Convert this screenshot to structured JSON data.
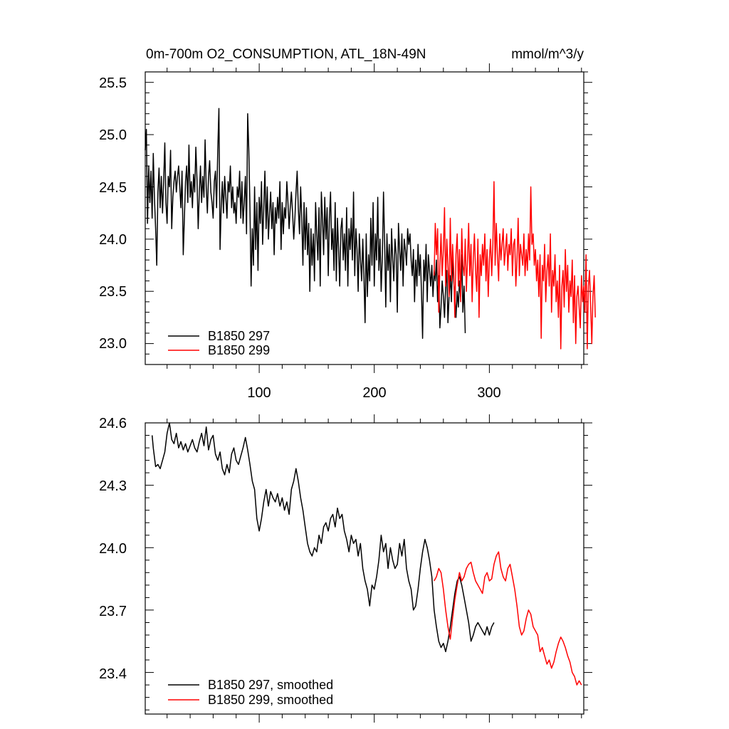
{
  "chart_data": [
    {
      "type": "line",
      "title": "0m-700m O2_CONSUMPTION, ATL_18N-49N",
      "units": "mmol/m^3/y",
      "xlim": [
        1,
        382
      ],
      "ylim": [
        22.8,
        25.6
      ],
      "xticks": [
        100,
        200,
        300
      ],
      "xtick_labels": [
        "100",
        "200",
        "300"
      ],
      "yticks": [
        23.0,
        23.5,
        24.0,
        24.5,
        25.0,
        25.5
      ],
      "ytick_labels": [
        "23.0",
        "23.5",
        "24.0",
        "24.5",
        "25.0",
        "25.5"
      ],
      "legend_position": "bottom-left",
      "series": [
        {
          "name": "B1850 297",
          "color": "#000000",
          "x_start": 1,
          "values": [
            24.85,
            25.05,
            24.15,
            24.7,
            24.35,
            24.65,
            24.2,
            24.82,
            24.4,
            24.1,
            23.75,
            24.45,
            24.68,
            24.3,
            24.6,
            24.25,
            24.55,
            24.92,
            24.35,
            24.15,
            24.6,
            24.5,
            24.85,
            24.1,
            24.4,
            24.55,
            24.65,
            24.45,
            24.6,
            24.7,
            24.5,
            24.3,
            24.65,
            23.85,
            24.2,
            24.55,
            24.7,
            24.35,
            24.9,
            24.4,
            24.55,
            24.3,
            24.62,
            24.45,
            24.88,
            24.55,
            24.1,
            24.45,
            24.7,
            24.35,
            24.6,
            24.4,
            24.95,
            24.5,
            24.25,
            24.6,
            24.75,
            24.45,
            24.35,
            24.2,
            24.55,
            24.65,
            24.3,
            24.85,
            25.25,
            23.9,
            24.3,
            24.55,
            24.25,
            24.6,
            24.4,
            24.2,
            24.55,
            24.45,
            24.7,
            24.3,
            24.5,
            24.25,
            24.35,
            24.15,
            24.5,
            24.4,
            24.65,
            24.2,
            24.55,
            24.15,
            24.35,
            24.6,
            24.05,
            25.2,
            24.85,
            24.3,
            23.55,
            24.1,
            23.75,
            24.5,
            23.9,
            24.35,
            23.7,
            24.4,
            24.15,
            24.55,
            23.95,
            24.3,
            24.65,
            24.1,
            24.5,
            24.0,
            24.25,
            24.45,
            24.1,
            24.35,
            23.85,
            24.3,
            24.15,
            24.4,
            24.2,
            24.55,
            23.9,
            24.35,
            24.05,
            24.3,
            24.2,
            24.55,
            24.35,
            24.1,
            24.3,
            24.45,
            24.25,
            24.0,
            24.2,
            24.45,
            24.65,
            24.3,
            24.05,
            24.5,
            24.2,
            23.75,
            24.35,
            23.9,
            24.3,
            23.85,
            24.15,
            23.5,
            24.1,
            23.75,
            24.05,
            23.6,
            24.35,
            24.05,
            23.8,
            24.3,
            23.55,
            24.45,
            24.2,
            23.85,
            24.4,
            24.0,
            24.3,
            23.65,
            24.2,
            24.45,
            23.9,
            24.1,
            23.7,
            24.35,
            23.6,
            24.2,
            23.9,
            23.55,
            24.1,
            24.2,
            23.8,
            24.05,
            23.7,
            24.3,
            23.55,
            24.1,
            23.9,
            24.2,
            23.8,
            24.45,
            23.65,
            24.1,
            23.9,
            23.5,
            24.05,
            23.8,
            23.6,
            24.0,
            23.65,
            23.2,
            24.05,
            23.45,
            23.85,
            23.6,
            24.2,
            23.75,
            24.35,
            23.55,
            24.05,
            23.8,
            24.4,
            23.7,
            24.0,
            23.5,
            23.85,
            24.45,
            23.95,
            23.35,
            24.05,
            23.7,
            23.95,
            23.4,
            24.1,
            23.8,
            23.6,
            24.0,
            23.85,
            23.3,
            24.15,
            23.9,
            23.7,
            24.05,
            23.55,
            24.0,
            23.9,
            23.75,
            24.1,
            23.95,
            24.05,
            23.8,
            23.65,
            23.9,
            23.4,
            23.8,
            23.55,
            23.95,
            23.65,
            23.85,
            23.5,
            23.05,
            23.8,
            23.6,
            23.95,
            23.4,
            23.85,
            23.7,
            23.55,
            23.75,
            23.45,
            23.7,
            23.6,
            23.8,
            23.4,
            23.65,
            23.15,
            23.35,
            23.6,
            23.45,
            23.25,
            23.55,
            23.7,
            23.2,
            23.45,
            23.65,
            23.4,
            23.8,
            23.6,
            23.45,
            23.25,
            23.5,
            23.35,
            23.6,
            23.45,
            23.85,
            23.3,
            23.55,
            23.1
          ]
        },
        {
          "name": "B1850 299",
          "color": "#ff0000",
          "x_start": 252,
          "values": [
            23.65,
            24.15,
            23.85,
            24.1,
            23.3,
            23.75,
            24.05,
            23.65,
            23.9,
            24.3,
            23.55,
            24.0,
            23.75,
            23.45,
            24.2,
            23.6,
            23.95,
            23.7,
            23.25,
            23.85,
            24.05,
            23.55,
            23.9,
            23.4,
            24.1,
            23.75,
            23.65,
            24.0,
            23.5,
            23.8,
            24.15,
            23.65,
            23.95,
            23.4,
            23.8,
            24.05,
            23.7,
            23.5,
            24.0,
            23.25,
            23.85,
            23.65,
            23.95,
            23.75,
            24.05,
            23.6,
            23.9,
            23.45,
            23.8,
            24.0,
            23.65,
            23.95,
            24.55,
            23.75,
            24.15,
            23.85,
            23.6,
            24.05,
            23.8,
            23.95,
            24.1,
            23.75,
            23.9,
            24.05,
            23.7,
            23.95,
            23.85,
            24.1,
            23.65,
            23.95,
            24.0,
            23.55,
            23.8,
            24.2,
            23.65,
            23.95,
            23.85,
            23.75,
            24.05,
            23.65,
            23.9,
            23.7,
            24.05,
            23.8,
            24.5,
            23.95,
            24.05,
            23.75,
            23.9,
            23.6,
            23.8,
            23.45,
            23.85,
            23.05,
            23.75,
            23.6,
            23.95,
            23.4,
            23.7,
            23.85,
            23.55,
            24.05,
            23.3,
            23.7,
            23.55,
            23.85,
            23.4,
            23.6,
            23.25,
            23.75,
            22.95,
            23.55,
            23.7,
            23.35,
            23.9,
            23.5,
            23.75,
            23.3,
            23.6,
            23.45,
            23.8,
            23.2,
            23.65,
            23.0,
            23.45,
            23.55,
            23.35,
            23.15,
            23.65,
            23.4,
            23.55,
            23.3,
            23.85,
            22.95,
            23.55,
            23.7,
            23.35,
            23.0,
            23.45,
            23.65,
            23.25
          ]
        }
      ]
    },
    {
      "type": "line",
      "title": "",
      "xlim": [
        1,
        382
      ],
      "ylim": [
        23.2,
        24.6
      ],
      "xticks": [
        100,
        200,
        300
      ],
      "yticks": [
        23.4,
        23.7,
        24.0,
        24.3,
        24.6
      ],
      "ytick_labels": [
        "23.4",
        "23.7",
        "24.0",
        "24.3",
        "24.6"
      ],
      "legend_position": "bottom-left",
      "series": [
        {
          "name": "B1850 297, smoothed",
          "color": "#000000",
          "x": [
            7,
            8,
            10,
            12,
            14,
            16,
            18,
            20,
            22,
            24,
            26,
            28,
            30,
            32,
            34,
            36,
            38,
            40,
            42,
            44,
            46,
            48,
            50,
            52,
            54,
            56,
            58,
            60,
            62,
            64,
            66,
            68,
            70,
            72,
            74,
            76,
            78,
            80,
            82,
            84,
            86,
            88,
            90,
            92,
            94,
            96,
            98,
            100,
            102,
            104,
            106,
            108,
            110,
            112,
            114,
            116,
            118,
            120,
            122,
            124,
            126,
            128,
            130,
            132,
            134,
            136,
            138,
            140,
            142,
            144,
            146,
            148,
            150,
            152,
            154,
            156,
            158,
            160,
            162,
            164,
            166,
            168,
            170,
            172,
            174,
            176,
            178,
            180,
            182,
            184,
            186,
            188,
            190,
            192,
            194,
            196,
            198,
            200,
            202,
            204,
            206,
            208,
            210,
            212,
            214,
            216,
            218,
            220,
            222,
            224,
            226,
            228,
            230,
            232,
            234,
            236,
            238,
            240,
            242,
            244,
            246,
            248,
            250,
            252,
            254,
            256,
            258,
            260,
            262,
            264,
            266,
            268,
            270,
            272,
            274,
            276,
            278,
            280,
            282,
            284,
            286,
            288,
            290,
            292,
            294,
            296,
            298,
            300,
            302,
            304
          ],
          "values": [
            24.54,
            24.48,
            24.39,
            24.4,
            24.38,
            24.42,
            24.46,
            24.55,
            24.6,
            24.52,
            24.5,
            24.55,
            24.48,
            24.51,
            24.47,
            24.5,
            24.46,
            24.49,
            24.52,
            24.48,
            24.46,
            24.51,
            24.55,
            24.49,
            24.58,
            24.47,
            24.52,
            24.54,
            24.45,
            24.42,
            24.46,
            24.38,
            24.35,
            24.4,
            24.36,
            24.45,
            24.48,
            24.42,
            24.4,
            24.44,
            24.48,
            24.53,
            24.47,
            24.4,
            24.32,
            24.28,
            24.14,
            24.08,
            24.14,
            24.22,
            24.28,
            24.2,
            24.27,
            24.24,
            24.22,
            24.26,
            24.2,
            24.24,
            24.18,
            24.22,
            24.16,
            24.28,
            24.32,
            24.38,
            24.32,
            24.24,
            24.18,
            24.1,
            24.02,
            23.98,
            23.96,
            24.0,
            23.98,
            24.06,
            24.02,
            24.1,
            24.12,
            24.08,
            24.14,
            24.16,
            24.1,
            24.19,
            24.14,
            24.16,
            24.08,
            24.04,
            23.98,
            24.06,
            24.02,
            24.04,
            23.96,
            24.02,
            23.9,
            23.84,
            23.8,
            23.72,
            23.82,
            23.8,
            23.86,
            23.94,
            24.06,
            23.98,
            24.02,
            23.9,
            24.0,
            23.94,
            23.9,
            23.92,
            24.02,
            23.96,
            24.04,
            23.9,
            23.84,
            23.8,
            23.7,
            23.72,
            23.8,
            23.9,
            23.98,
            24.04,
            24.0,
            23.94,
            23.86,
            23.7,
            23.62,
            23.55,
            23.52,
            23.54,
            23.5,
            23.55,
            23.62,
            23.7,
            23.78,
            23.84,
            23.86,
            23.82,
            23.76,
            23.7,
            23.64,
            23.55,
            23.58,
            23.62,
            23.64,
            23.62,
            23.6,
            23.58,
            23.62,
            23.58,
            23.62,
            23.64
          ]
        },
        {
          "name": "B1850 299, smoothed",
          "color": "#ff0000",
          "x": [
            252,
            254,
            256,
            258,
            260,
            262,
            264,
            266,
            268,
            270,
            272,
            274,
            276,
            278,
            280,
            282,
            284,
            286,
            288,
            290,
            292,
            294,
            296,
            298,
            300,
            302,
            304,
            306,
            308,
            310,
            312,
            314,
            316,
            318,
            320,
            322,
            324,
            326,
            328,
            330,
            332,
            334,
            336,
            338,
            340,
            342,
            344,
            346,
            348,
            350,
            352,
            354,
            356,
            358,
            360,
            362,
            364,
            366,
            368,
            370,
            372,
            374,
            376,
            378,
            380
          ],
          "values": [
            23.84,
            23.86,
            23.9,
            23.88,
            23.8,
            23.7,
            23.62,
            23.56,
            23.66,
            23.75,
            23.82,
            23.88,
            23.84,
            23.86,
            23.9,
            23.92,
            23.93,
            23.88,
            23.84,
            23.82,
            23.8,
            23.78,
            23.86,
            23.88,
            23.84,
            23.85,
            23.92,
            23.96,
            23.98,
            23.9,
            23.86,
            23.84,
            23.9,
            23.92,
            23.86,
            23.8,
            23.72,
            23.62,
            23.58,
            23.6,
            23.66,
            23.7,
            23.68,
            23.62,
            23.6,
            23.58,
            23.5,
            23.52,
            23.48,
            23.44,
            23.46,
            23.42,
            23.45,
            23.5,
            23.54,
            23.57,
            23.55,
            23.52,
            23.48,
            23.45,
            23.4,
            23.38,
            23.34,
            23.36,
            23.34
          ]
        }
      ]
    }
  ]
}
